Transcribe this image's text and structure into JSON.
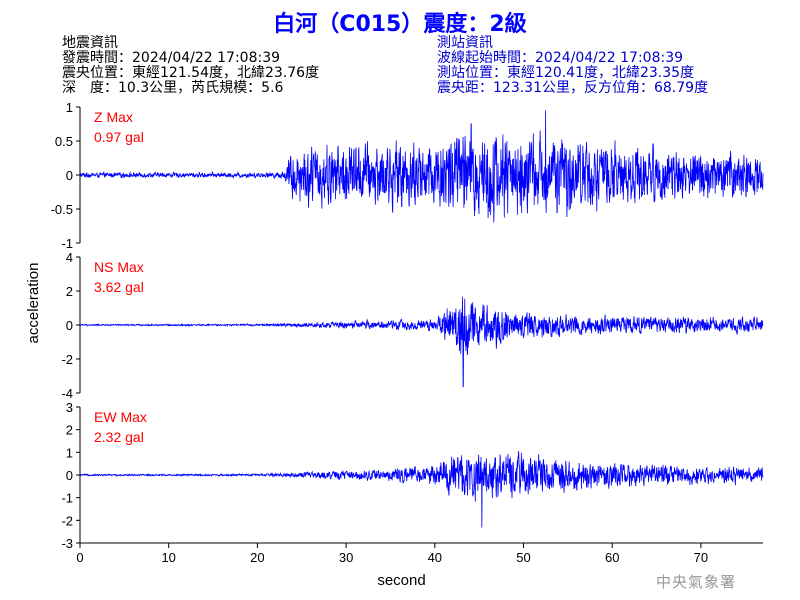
{
  "title": "白河（C015）震度：2級",
  "quake_info": {
    "header": "地震資訊",
    "origin_time": "發震時間：2024/04/22 17:08:39",
    "epicenter": "震央位置：東經121.54度，北緯23.76度",
    "depth_magnitude": "深　度：10.3公里，芮氏規模：5.6"
  },
  "station_info": {
    "header": "測站資訊",
    "wave_start": "波線起始時間：2024/04/22 17:08:39",
    "location": "測站位置：東經120.41度，北緯23.35度",
    "distance": "震央距：123.31公里，反方位角：68.79度"
  },
  "agency": "中央氣象署",
  "colors": {
    "trace": "#0000ff",
    "max_label": "#ff0000",
    "title": "#0000ff"
  },
  "chart_data": [
    {
      "type": "line",
      "component": "Z",
      "max_label": "Z Max",
      "max_value": "0.97 gal",
      "ylim": [
        -1,
        1
      ],
      "yticks": [
        "-1",
        "-0.5",
        "0",
        "0.5",
        "1"
      ],
      "ytick_values": [
        -1,
        -0.5,
        0,
        0.5,
        1
      ],
      "envelope": {
        "t": [
          0,
          20,
          23,
          24,
          27,
          40,
          42,
          45,
          50,
          55,
          60,
          70,
          77
        ],
        "amp": [
          0.04,
          0.04,
          0.06,
          0.45,
          0.5,
          0.55,
          0.75,
          0.8,
          0.65,
          0.6,
          0.5,
          0.4,
          0.35
        ]
      },
      "peak": {
        "t": 52.5,
        "value": 0.97
      }
    },
    {
      "type": "line",
      "component": "NS",
      "max_label": "NS Max",
      "max_value": "3.62 gal",
      "ylim": [
        -4,
        4
      ],
      "yticks": [
        "-4",
        "-2",
        "0",
        "2",
        "4"
      ],
      "ytick_values": [
        -4,
        -2,
        0,
        2,
        4
      ],
      "envelope": {
        "t": [
          0,
          20,
          24,
          28,
          35,
          40,
          42,
          43,
          45,
          50,
          60,
          70,
          77
        ],
        "amp": [
          0.05,
          0.06,
          0.12,
          0.2,
          0.3,
          0.4,
          1.6,
          2.4,
          1.5,
          0.9,
          0.6,
          0.5,
          0.45
        ]
      },
      "peak": {
        "t": 43.2,
        "value": -3.62
      }
    },
    {
      "type": "line",
      "component": "EW",
      "max_label": "EW Max",
      "max_value": "2.32 gal",
      "ylim": [
        -3,
        3
      ],
      "yticks": [
        "-3",
        "-2",
        "-1",
        "0",
        "1",
        "2",
        "3"
      ],
      "ytick_values": [
        -3,
        -2,
        -1,
        0,
        1,
        2,
        3
      ],
      "envelope": {
        "t": [
          0,
          20,
          24,
          28,
          35,
          40,
          42,
          45,
          50,
          55,
          60,
          70,
          77
        ],
        "amp": [
          0.04,
          0.05,
          0.12,
          0.2,
          0.3,
          0.5,
          1.1,
          1.2,
          0.95,
          0.75,
          0.6,
          0.45,
          0.4
        ]
      },
      "peak": {
        "t": 45.3,
        "value": -2.32
      }
    }
  ],
  "x_axis": {
    "label": "second",
    "xlim": [
      0,
      77
    ],
    "ticks": [
      "0",
      "10",
      "20",
      "30",
      "40",
      "50",
      "60",
      "70"
    ],
    "tick_values": [
      0,
      10,
      20,
      30,
      40,
      50,
      60,
      70
    ]
  },
  "y_axis_label": "acceleration"
}
